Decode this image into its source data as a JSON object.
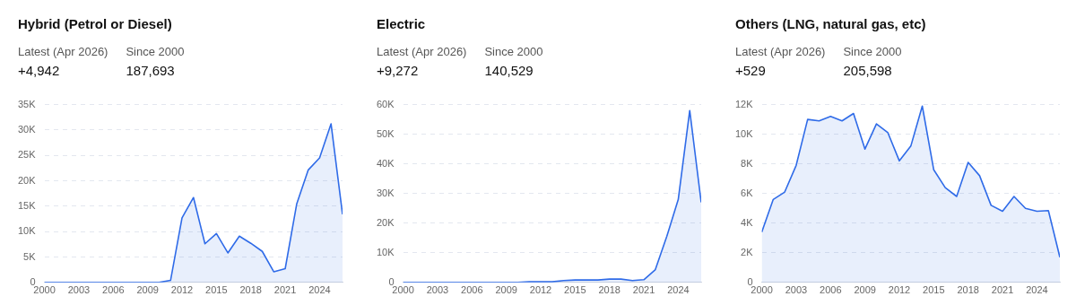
{
  "chart_data": [
    {
      "type": "area",
      "title": "Hybrid (Petrol or Diesel)",
      "annotations": [
        "Latest (Apr 2026)",
        "+4,942",
        "Since 2000",
        "187,693"
      ],
      "x": [
        2000,
        2001,
        2002,
        2003,
        2004,
        2005,
        2006,
        2007,
        2008,
        2009,
        2010,
        2011,
        2012,
        2013,
        2014,
        2015,
        2016,
        2017,
        2018,
        2019,
        2020,
        2021,
        2022,
        2023,
        2024,
        2025,
        2026
      ],
      "series": [
        {
          "color": "#2f6be8",
          "values": [
            0,
            0,
            0,
            0,
            0,
            0,
            0,
            0,
            0,
            0,
            0,
            400,
            12700,
            16700,
            7600,
            9600,
            5800,
            9100,
            7700,
            6100,
            2100,
            2700,
            15400,
            22100,
            24500,
            31200,
            13400
          ]
        }
      ],
      "xlim": [
        2000,
        2026
      ],
      "xticks": [
        2000,
        2003,
        2006,
        2009,
        2012,
        2015,
        2018,
        2021,
        2024
      ],
      "ylim": [
        0,
        35000
      ],
      "yticks": [
        {
          "value": 0,
          "label": "0"
        },
        {
          "value": 5000,
          "label": "5K"
        },
        {
          "value": 10000,
          "label": "10K"
        },
        {
          "value": 15000,
          "label": "15K"
        },
        {
          "value": 20000,
          "label": "20K"
        },
        {
          "value": 25000,
          "label": "25K"
        },
        {
          "value": 30000,
          "label": "30K"
        },
        {
          "value": 35000,
          "label": "35K"
        }
      ],
      "grid": "y",
      "legend": false,
      "marker": "none",
      "line_style": "solid"
    },
    {
      "type": "area",
      "title": "Electric",
      "annotations": [
        "Latest (Apr 2026)",
        "+9,272",
        "Since 2000",
        "140,529"
      ],
      "x": [
        2000,
        2001,
        2002,
        2003,
        2004,
        2005,
        2006,
        2007,
        2008,
        2009,
        2010,
        2011,
        2012,
        2013,
        2014,
        2015,
        2016,
        2017,
        2018,
        2019,
        2020,
        2021,
        2022,
        2023,
        2024,
        2025,
        2026
      ],
      "series": [
        {
          "color": "#2f6be8",
          "values": [
            0,
            0,
            0,
            0,
            0,
            0,
            0,
            0,
            0,
            0,
            0,
            200,
            200,
            200,
            600,
            800,
            800,
            800,
            1100,
            1100,
            600,
            900,
            4300,
            15500,
            28000,
            58000,
            27000
          ]
        }
      ],
      "xlim": [
        2000,
        2026
      ],
      "xticks": [
        2000,
        2003,
        2006,
        2009,
        2012,
        2015,
        2018,
        2021,
        2024
      ],
      "ylim": [
        0,
        60000
      ],
      "yticks": [
        {
          "value": 0,
          "label": "0"
        },
        {
          "value": 10000,
          "label": "10K"
        },
        {
          "value": 20000,
          "label": "20K"
        },
        {
          "value": 30000,
          "label": "30K"
        },
        {
          "value": 40000,
          "label": "40K"
        },
        {
          "value": 50000,
          "label": "50K"
        },
        {
          "value": 60000,
          "label": "60K"
        }
      ],
      "grid": "y",
      "legend": false,
      "marker": "none",
      "line_style": "solid"
    },
    {
      "type": "area",
      "title": "Others (LNG, natural gas, etc)",
      "annotations": [
        "Latest (Apr 2026)",
        "+529",
        "Since 2000",
        "205,598"
      ],
      "x": [
        2000,
        2001,
        2002,
        2003,
        2004,
        2005,
        2006,
        2007,
        2008,
        2009,
        2010,
        2011,
        2012,
        2013,
        2014,
        2015,
        2016,
        2017,
        2018,
        2019,
        2020,
        2021,
        2022,
        2023,
        2024,
        2025,
        2026
      ],
      "series": [
        {
          "color": "#2f6be8",
          "values": [
            3400,
            5600,
            6100,
            7900,
            11000,
            10900,
            11200,
            10900,
            11400,
            9000,
            10700,
            10100,
            8200,
            9200,
            11900,
            7600,
            6400,
            5800,
            8100,
            7200,
            5200,
            4800,
            5800,
            5000,
            4800,
            4850,
            1700
          ]
        }
      ],
      "xlim": [
        2000,
        2026
      ],
      "xticks": [
        2000,
        2003,
        2006,
        2009,
        2012,
        2015,
        2018,
        2021,
        2024
      ],
      "ylim": [
        0,
        12000
      ],
      "yticks": [
        {
          "value": 0,
          "label": "0"
        },
        {
          "value": 2000,
          "label": "2K"
        },
        {
          "value": 4000,
          "label": "4K"
        },
        {
          "value": 6000,
          "label": "6K"
        },
        {
          "value": 8000,
          "label": "8K"
        },
        {
          "value": 10000,
          "label": "10K"
        },
        {
          "value": 12000,
          "label": "12K"
        }
      ],
      "grid": "y",
      "legend": false,
      "marker": "none",
      "line_style": "solid"
    }
  ]
}
